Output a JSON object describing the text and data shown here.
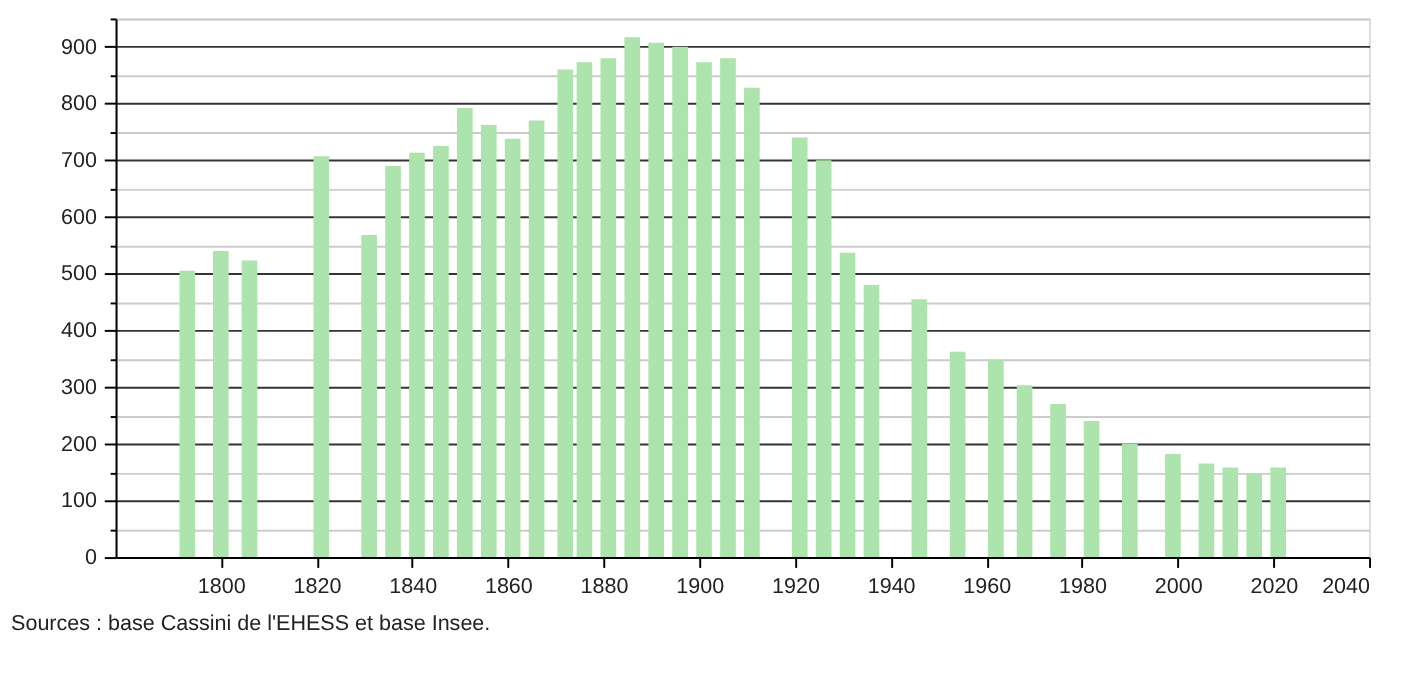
{
  "chart_data": {
    "type": "bar",
    "x": [
      1793,
      1800,
      1806,
      1821,
      1831,
      1836,
      1841,
      1846,
      1851,
      1856,
      1861,
      1866,
      1872,
      1876,
      1881,
      1886,
      1891,
      1896,
      1901,
      1906,
      1911,
      1921,
      1926,
      1931,
      1936,
      1946,
      1954,
      1962,
      1968,
      1975,
      1982,
      1990,
      1999,
      2006,
      2011,
      2016,
      2021
    ],
    "values": [
      505,
      540,
      523,
      707,
      568,
      690,
      713,
      725,
      792,
      762,
      738,
      770,
      860,
      873,
      880,
      917,
      907,
      900,
      873,
      880,
      828,
      740,
      700,
      537,
      480,
      455,
      362,
      348,
      303,
      270,
      240,
      200,
      182,
      165,
      158,
      148,
      158
    ],
    "color": "#ade3ad",
    "xlim": [
      1778,
      2040
    ],
    "xticks": [
      1800,
      1820,
      1840,
      1860,
      1880,
      1900,
      1920,
      1940,
      1960,
      1980,
      2000,
      2020,
      2040
    ],
    "ylim": [
      0,
      950
    ],
    "yticks": [
      0,
      {
        "value": 50,
        "label": null
      },
      100,
      {
        "value": 150,
        "label": null
      },
      200,
      {
        "value": 250,
        "label": null
      },
      300,
      {
        "value": 350,
        "label": null
      },
      400,
      {
        "value": 450,
        "label": null
      },
      500,
      {
        "value": 550,
        "label": null
      },
      600,
      {
        "value": 650,
        "label": null
      },
      700,
      {
        "value": 750,
        "label": null
      },
      800,
      {
        "value": 850,
        "label": null
      },
      900,
      {
        "value": 950,
        "label": null
      }
    ],
    "grid": "y",
    "annotations": [
      "Sources : base Cassini de l'EHESS et base Insee."
    ]
  }
}
